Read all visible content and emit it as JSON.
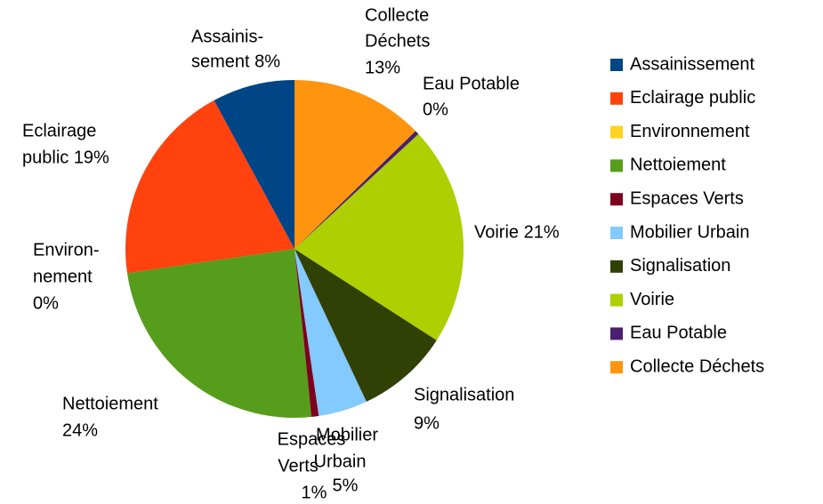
{
  "chart_data": {
    "type": "pie",
    "categories": [
      "Assainissement",
      "Eclairage public",
      "Environnement",
      "Nettoiement",
      "Espaces Verts",
      "Mobilier Urbain",
      "Signalisation",
      "Voirie",
      "Eau Potable",
      "Collecte Déchets"
    ],
    "values": [
      7.9,
      19.4,
      0,
      24.3,
      0.7,
      4.7,
      8.9,
      21.0,
      0.4,
      12.7
    ],
    "value_labels": [
      [
        "Assainis-",
        "sement 8%"
      ],
      [
        "Eclairage",
        "public 19%"
      ],
      [
        "Environ-",
        "nement",
        "0%"
      ],
      [
        "Nettoiement",
        "24%"
      ],
      [
        "Espaces",
        "Verts",
        "1%"
      ],
      [
        "Mobilier",
        "Urbain",
        "5%"
      ],
      [
        "Signalisation",
        "9%"
      ],
      [
        "Voirie 21%"
      ],
      [
        "Eau Potable",
        "0%"
      ],
      [
        "Collecte",
        "Déchets",
        "13%"
      ]
    ],
    "colors": [
      "#004586",
      "#ff420e",
      "#ffd320",
      "#579d1c",
      "#7e0021",
      "#83caff",
      "#314004",
      "#aecf00",
      "#4b1f6f",
      "#ff950e"
    ],
    "legend": "right"
  }
}
